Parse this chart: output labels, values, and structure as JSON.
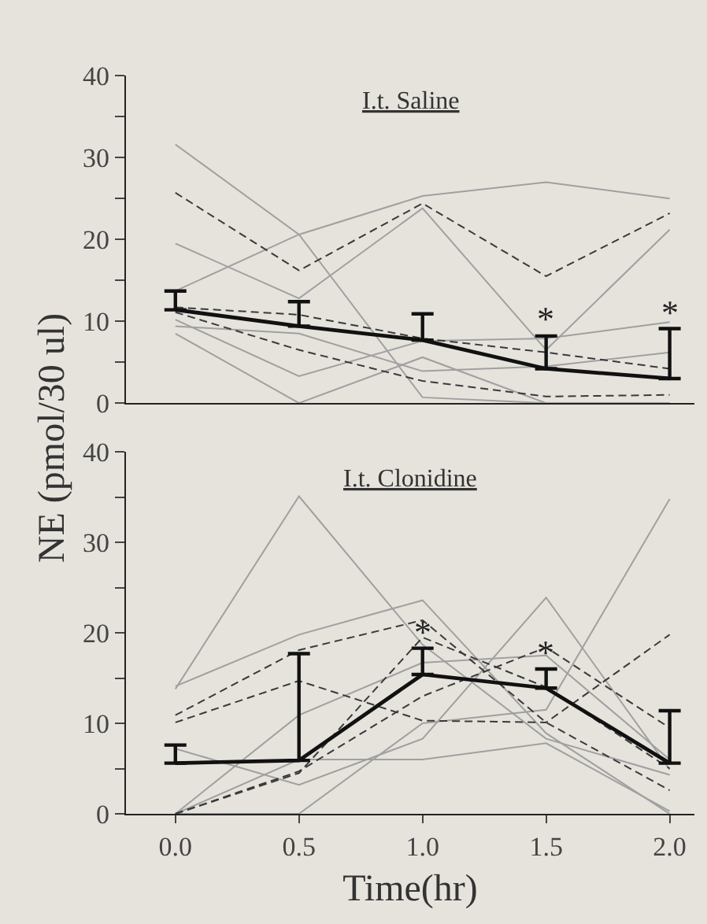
{
  "chart_data": [
    {
      "type": "line",
      "title": "I.t. Saline",
      "ylabel": "NE (pmol/30 ul)",
      "x": [
        0.0,
        0.5,
        1.0,
        1.5,
        2.0
      ],
      "xlim": [
        -0.2,
        2.1
      ],
      "ylim": [
        0,
        40
      ],
      "yticks": [
        0,
        {
          "value": 5,
          "label": null
        },
        10,
        {
          "value": 15,
          "label": null
        },
        20,
        {
          "value": 25,
          "label": null
        },
        30,
        {
          "value": 35,
          "label": null
        },
        40
      ],
      "tick_labels": "y",
      "grid": false,
      "marker": "none",
      "series": [
        {
          "color": "#a0a0a0",
          "line_style": "solid",
          "values": [
            31.6,
            20.6,
            0.7,
            0,
            0
          ]
        },
        {
          "color": "#a0a0a0",
          "line_style": "solid",
          "values": [
            13.7,
            20.6,
            25.3,
            27.0,
            25.0
          ]
        },
        {
          "color": "#a0a0a0",
          "line_style": "solid",
          "values": [
            19.5,
            12.8,
            23.8,
            6.5,
            21.2
          ]
        },
        {
          "color": "#a0a0a0",
          "line_style": "solid",
          "values": [
            10.2,
            3.3,
            7.6,
            7.9,
            9.9
          ]
        },
        {
          "color": "#a0a0a0",
          "line_style": "solid",
          "values": [
            8.5,
            0,
            5.6,
            0,
            0
          ]
        },
        {
          "color": "#a0a0a0",
          "line_style": "solid",
          "values": [
            9.4,
            8.5,
            3.9,
            4.5,
            6.2
          ]
        },
        {
          "color": "#3a3a3a",
          "line_style": "dashed",
          "values": [
            25.7,
            16.2,
            24.4,
            15.5,
            23.2
          ]
        },
        {
          "color": "#3a3a3a",
          "line_style": "dashed",
          "values": [
            11.7,
            10.8,
            7.9,
            6.2,
            4.2
          ]
        },
        {
          "color": "#3a3a3a",
          "line_style": "dashed",
          "values": [
            11.1,
            6.5,
            2.7,
            0.8,
            1.0
          ]
        },
        {
          "color": "#111111",
          "line_style": "solid",
          "values": [
            11.4,
            9.4,
            7.7,
            4.2,
            3.0
          ],
          "errors": [
            [
              11.4,
              13.7
            ],
            [
              9.4,
              12.4
            ],
            [
              7.7,
              10.9
            ],
            [
              4.2,
              8.2
            ],
            [
              3.0,
              9.1
            ]
          ]
        }
      ],
      "annotations": [
        {
          "text": "*",
          "x": 1.5,
          "y": 8.2
        },
        {
          "text": "*",
          "x": 2.0,
          "y": 9.1
        }
      ]
    },
    {
      "type": "line",
      "title": "I.t. Clonidine",
      "xlabel": "Time(hr)",
      "x": [
        0.0,
        0.5,
        1.0,
        1.5,
        2.0
      ],
      "xlim": [
        -0.2,
        2.1
      ],
      "ylim": [
        0,
        40
      ],
      "xticks": [
        {
          "value": 0,
          "label": "0.0"
        },
        0.5,
        {
          "value": 1,
          "label": "1.0"
        },
        1.5,
        {
          "value": 2,
          "label": "2.0"
        }
      ],
      "yticks": [
        0,
        {
          "value": 5,
          "label": null
        },
        10,
        {
          "value": 15,
          "label": null
        },
        20,
        {
          "value": 25,
          "label": null
        },
        30,
        {
          "value": 35,
          "label": null
        },
        40
      ],
      "grid": false,
      "marker": "none",
      "series": [
        {
          "color": "#a0a0a0",
          "line_style": "solid",
          "values": [
            13.8,
            35.1,
            18.7,
            8.3,
            4.3
          ]
        },
        {
          "color": "#a0a0a0",
          "line_style": "solid",
          "values": [
            14.1,
            19.8,
            23.6,
            8.9,
            0
          ]
        },
        {
          "color": "#a0a0a0",
          "line_style": "solid",
          "values": [
            0,
            0,
            10.0,
            11.5,
            34.8
          ]
        },
        {
          "color": "#a0a0a0",
          "line_style": "solid",
          "values": [
            7.2,
            3.2,
            8.3,
            23.9,
            4.9
          ]
        },
        {
          "color": "#a0a0a0",
          "line_style": "solid",
          "values": [
            0,
            6.0,
            6.0,
            7.8,
            0.3
          ]
        },
        {
          "color": "#a0a0a0",
          "line_style": "solid",
          "values": [
            0,
            10.9,
            16.7,
            17.5,
            6.0
          ]
        },
        {
          "color": "#3a3a3a",
          "line_style": "dashed",
          "values": [
            10.9,
            18.1,
            21.4,
            10.1,
            2.6
          ]
        },
        {
          "color": "#3a3a3a",
          "line_style": "dashed",
          "values": [
            10.1,
            14.7,
            10.3,
            10.1,
            19.8
          ]
        },
        {
          "color": "#3a3a3a",
          "line_style": "dashed",
          "values": [
            0,
            4.7,
            13.0,
            18.4,
            9.5
          ]
        },
        {
          "color": "#3a3a3a",
          "line_style": "dashed",
          "values": [
            0,
            4.5,
            19.5,
            14.0,
            5.0
          ]
        },
        {
          "color": "#111111",
          "line_style": "solid",
          "values": [
            5.6,
            5.9,
            15.4,
            13.9,
            5.6
          ],
          "errors": [
            [
              5.6,
              7.6
            ],
            [
              5.9,
              17.7
            ],
            [
              15.4,
              18.3
            ],
            [
              13.9,
              16.0
            ],
            [
              5.6,
              11.4
            ]
          ]
        }
      ],
      "annotations": [
        {
          "text": "*",
          "x": 1.0,
          "y": 18.3
        },
        {
          "text": "*",
          "x": 1.5,
          "y": 16.0
        }
      ]
    }
  ]
}
